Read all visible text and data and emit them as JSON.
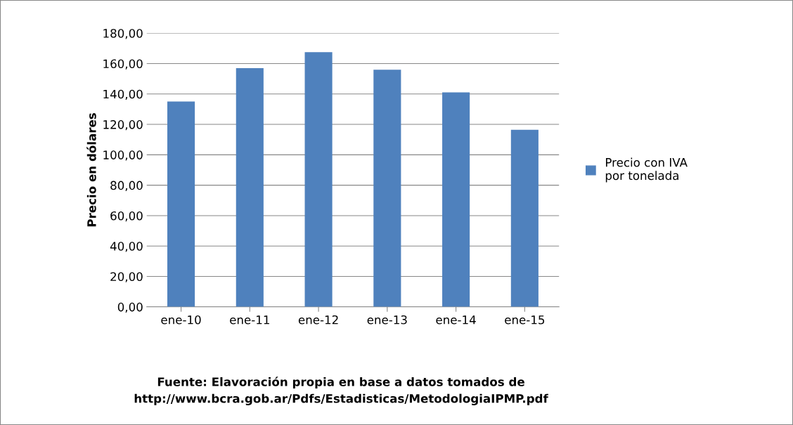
{
  "chart_data": {
    "type": "bar",
    "ylabel": "Precio en dólares",
    "categories": [
      "ene-10",
      "ene-11",
      "ene-12",
      "ene-13",
      "ene-14",
      "ene-15"
    ],
    "series": [
      {
        "name": "Precio con IVA\npor tonelada",
        "color": "#4f81bd",
        "values": [
          135,
          157,
          167.5,
          156,
          141,
          116.5
        ]
      }
    ],
    "ylim": [
      0,
      180
    ],
    "yticks": [
      {
        "value": 0,
        "label": "0,00"
      },
      {
        "value": 20,
        "label": "20,00"
      },
      {
        "value": 40,
        "label": "40,00"
      },
      {
        "value": 60,
        "label": "60,00"
      },
      {
        "value": 80,
        "label": "80,00"
      },
      {
        "value": 100,
        "label": "100,00"
      },
      {
        "value": 120,
        "label": "120,00"
      },
      {
        "value": 140,
        "label": "140,00"
      },
      {
        "value": 160,
        "label": "160,00"
      },
      {
        "value": 180,
        "label": "180,00"
      }
    ],
    "grid": "y",
    "legend": "right",
    "annotations": [
      "Fuente: Elavoración propia en base a datos tomados de\nhttp://www.bcra.gob.ar/Pdfs/Estadisticas/MetodologiaIPMP.pdf"
    ]
  }
}
